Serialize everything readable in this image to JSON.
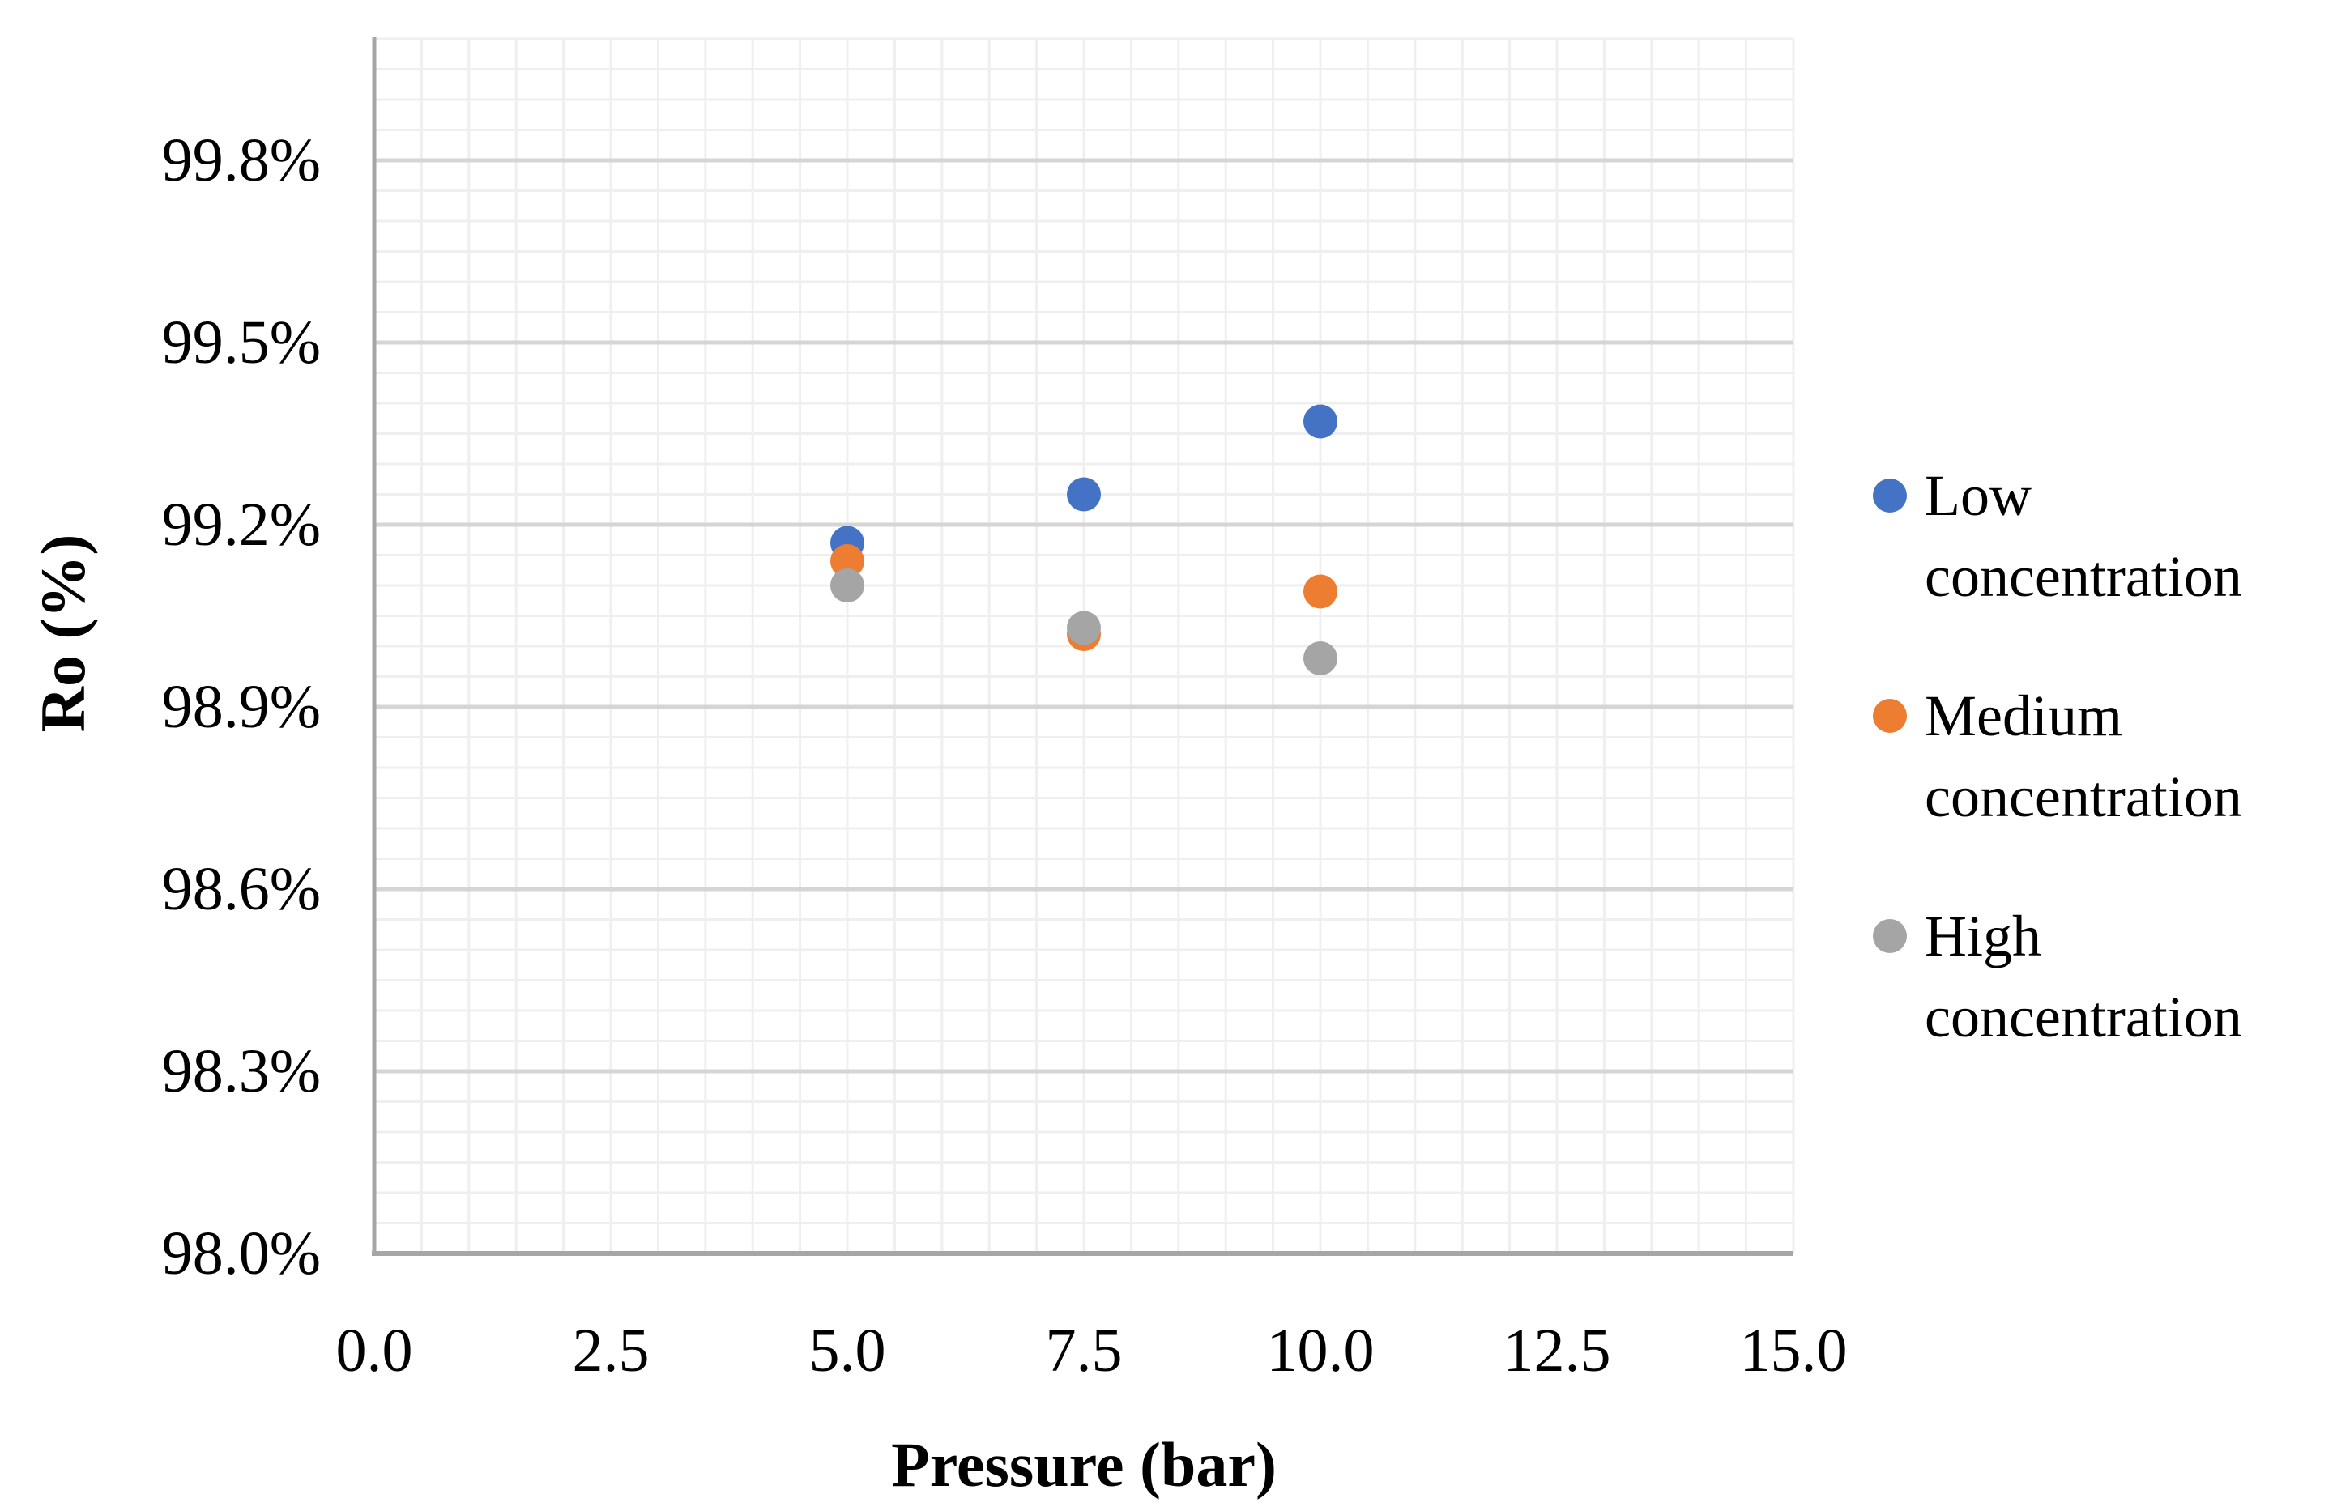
{
  "chart_data": {
    "type": "scatter",
    "title": "",
    "xlabel": "Pressure (bar)",
    "ylabel": "Ro (%)",
    "xlim": [
      0,
      15
    ],
    "ylim": [
      98.0,
      100.0
    ],
    "x_major_ticks": [
      0.0,
      2.5,
      5.0,
      7.5,
      10.0,
      12.5,
      15.0
    ],
    "x_tick_labels": [
      "0.0",
      "2.5",
      "5.0",
      "7.5",
      "10.0",
      "12.5",
      "15.0"
    ],
    "x_minor_step": 0.5,
    "y_major_ticks": [
      98.0,
      98.3,
      98.6,
      98.9,
      99.2,
      99.5,
      99.8
    ],
    "y_tick_labels": [
      "98.0%",
      "98.3%",
      "98.6%",
      "98.9%",
      "99.2%",
      "99.5%",
      "99.8%"
    ],
    "y_minor_step": 0.05,
    "grid": true,
    "legend_position": "right",
    "series": [
      {
        "name": "Low concentration",
        "color": "#4472C4",
        "points": [
          [
            5.0,
            99.17
          ],
          [
            7.5,
            99.25
          ],
          [
            10.0,
            99.37
          ]
        ]
      },
      {
        "name": "Medium concentration",
        "color": "#ED7D31",
        "points": [
          [
            5.0,
            99.14
          ],
          [
            7.5,
            99.02
          ],
          [
            10.0,
            99.09
          ]
        ]
      },
      {
        "name": "High concentration",
        "color": "#A5A5A5",
        "points": [
          [
            5.0,
            99.1
          ],
          [
            7.5,
            99.03
          ],
          [
            10.0,
            98.98
          ]
        ]
      }
    ]
  },
  "colors": {
    "background": "#ffffff",
    "grid_minor": "#EFEFEF",
    "grid_major": "#D5D5D5",
    "axis_line": "#A6A6A6",
    "text": "#000000",
    "series_low": "#4472C4",
    "series_medium": "#ED7D31",
    "series_high": "#A5A5A5"
  }
}
